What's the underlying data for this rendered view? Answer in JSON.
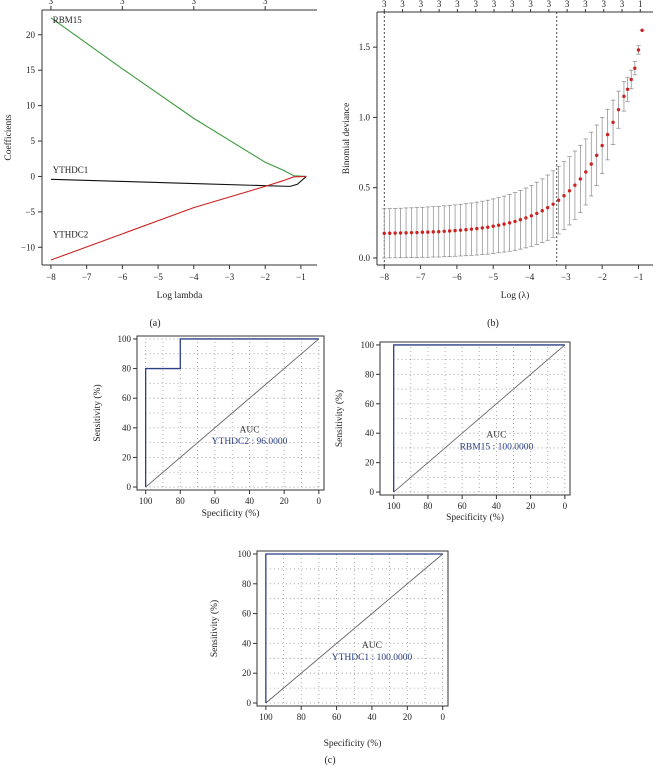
{
  "figure": {
    "panel_a_label": "(a)",
    "panel_b_label": "(b)",
    "panel_c_label": "(c)"
  },
  "colors": {
    "axis": "#333333",
    "green": "#3a9a3a",
    "red": "#cc2222",
    "black": "#111111",
    "roc_blue": "#2b3f86",
    "diag": "#666666",
    "grid": "#777777",
    "errbar": "#888888"
  },
  "chart_data": [
    {
      "id": "a",
      "type": "line",
      "title": "",
      "xlabel": "Log lambda",
      "ylabel": "Coefficients",
      "xlim": [
        -8.25,
        -0.55
      ],
      "ylim": [
        -12.5,
        23.5
      ],
      "xticks": [
        -8,
        -7,
        -6,
        -5,
        -4,
        -3,
        -2,
        -1
      ],
      "yticks": [
        -10,
        -5,
        0,
        5,
        10,
        15,
        20
      ],
      "top_ticks": {
        "x": [
          -8,
          -6,
          -4,
          -2
        ],
        "labels": [
          "3",
          "3",
          "3",
          "3"
        ]
      },
      "series": [
        {
          "name": "RBM15",
          "color": "green",
          "x": [
            -8,
            -6,
            -4,
            -2,
            -1.5,
            -1.2,
            -0.85
          ],
          "y": [
            22.4,
            15.2,
            8.2,
            2.0,
            0.9,
            0.1,
            0
          ]
        },
        {
          "name": "YTHDC1",
          "color": "black",
          "x": [
            -8,
            -6,
            -4,
            -2,
            -1.3,
            -1.1,
            -0.85
          ],
          "y": [
            -0.4,
            -0.7,
            -1.0,
            -1.3,
            -1.4,
            -1.1,
            0
          ]
        },
        {
          "name": "YTHDC2",
          "color": "red",
          "x": [
            -8,
            -6,
            -4,
            -2,
            -1.5,
            -1.2,
            -0.85
          ],
          "y": [
            -11.8,
            -8.1,
            -4.4,
            -1.4,
            -0.6,
            -0.05,
            0
          ]
        }
      ],
      "labels": [
        {
          "text": "RBM15",
          "x": -7.95,
          "y": 21.7
        },
        {
          "text": "YTHDC1",
          "x": -7.95,
          "y": 0.5
        },
        {
          "text": "YTHDC2",
          "x": -7.95,
          "y": -8.6
        }
      ]
    },
    {
      "id": "b",
      "type": "scatter",
      "title": "",
      "xlabel": "Log (λ)",
      "ylabel": "Binomial deviance",
      "xlim": [
        -8.2,
        -0.6
      ],
      "ylim": [
        -0.05,
        1.75
      ],
      "xticks": [
        -8,
        -7,
        -6,
        -5,
        -4,
        -3,
        -2,
        -1
      ],
      "yticks": [
        0.0,
        0.5,
        1.0,
        1.5
      ],
      "ytick_labels": [
        "0.0",
        "0.5",
        "1.0",
        "1.5"
      ],
      "top_labels": [
        "3",
        "3",
        "3",
        "3",
        "3",
        "3",
        "3",
        "3",
        "3",
        "3",
        "3",
        "3",
        "3",
        "3",
        "1"
      ],
      "vlines": [
        -8,
        -3.25
      ],
      "x": [
        -8.0,
        -7.85,
        -7.7,
        -7.55,
        -7.4,
        -7.25,
        -7.1,
        -6.95,
        -6.8,
        -6.65,
        -6.5,
        -6.35,
        -6.2,
        -6.05,
        -5.9,
        -5.75,
        -5.6,
        -5.45,
        -5.3,
        -5.15,
        -5.0,
        -4.85,
        -4.7,
        -4.55,
        -4.4,
        -4.25,
        -4.1,
        -3.95,
        -3.8,
        -3.65,
        -3.5,
        -3.35,
        -3.2,
        -3.05,
        -2.9,
        -2.75,
        -2.6,
        -2.45,
        -2.3,
        -2.15,
        -2.0,
        -1.85,
        -1.7,
        -1.55,
        -1.4,
        -1.3,
        -1.2,
        -1.1,
        -1.0,
        -0.9
      ],
      "mean": [
        0.175,
        0.176,
        0.177,
        0.178,
        0.179,
        0.18,
        0.181,
        0.183,
        0.184,
        0.186,
        0.187,
        0.19,
        0.192,
        0.195,
        0.198,
        0.201,
        0.205,
        0.209,
        0.214,
        0.219,
        0.226,
        0.233,
        0.241,
        0.25,
        0.26,
        0.272,
        0.285,
        0.3,
        0.317,
        0.336,
        0.358,
        0.383,
        0.411,
        0.443,
        0.478,
        0.518,
        0.562,
        0.612,
        0.668,
        0.73,
        0.8,
        0.878,
        0.965,
        1.055,
        1.15,
        1.2,
        1.27,
        1.35,
        1.48,
        1.62
      ],
      "err": [
        0.175,
        0.175,
        0.176,
        0.176,
        0.177,
        0.177,
        0.178,
        0.178,
        0.179,
        0.179,
        0.18,
        0.181,
        0.182,
        0.183,
        0.184,
        0.185,
        0.186,
        0.188,
        0.19,
        0.192,
        0.194,
        0.196,
        0.199,
        0.202,
        0.205,
        0.209,
        0.213,
        0.217,
        0.222,
        0.227,
        0.232,
        0.237,
        0.24,
        0.242,
        0.243,
        0.243,
        0.24,
        0.235,
        0.227,
        0.216,
        0.2,
        0.18,
        0.158,
        0.132,
        0.105,
        0.086,
        0.066,
        0.047,
        0.03,
        0.0
      ]
    },
    {
      "id": "c1",
      "type": "line",
      "xlabel": "Specificity (%)",
      "ylabel": "Sensitivity (%)",
      "xlim": [
        105,
        -3
      ],
      "ylim": [
        -2,
        102
      ],
      "xticks": [
        100,
        80,
        60,
        40,
        20,
        0
      ],
      "yticks": [
        0,
        20,
        40,
        60,
        80,
        100
      ],
      "auc_title": "AUC",
      "auc_label": "YTHDC2 : 96.0000",
      "roc_x": [
        100,
        100,
        80,
        80,
        0
      ],
      "roc_y": [
        0,
        80,
        80,
        100,
        100
      ]
    },
    {
      "id": "c2",
      "type": "line",
      "xlabel": "Specificity (%)",
      "ylabel": "Sensitivity (%)",
      "xlim": [
        108,
        -3
      ],
      "ylim": [
        -2,
        102
      ],
      "xticks": [
        100,
        80,
        60,
        40,
        20,
        0
      ],
      "yticks": [
        0,
        20,
        40,
        60,
        80,
        100
      ],
      "auc_title": "AUC",
      "auc_label": "RBM15 : 100.0000",
      "roc_x": [
        100,
        100,
        0
      ],
      "roc_y": [
        0,
        100,
        100
      ]
    },
    {
      "id": "c3",
      "type": "line",
      "xlabel": "Specificity (%)",
      "ylabel": "Sensitivity (%)",
      "xlim": [
        105,
        -3
      ],
      "ylim": [
        -2,
        102
      ],
      "xticks": [
        100,
        80,
        60,
        40,
        20,
        0
      ],
      "yticks": [
        0,
        20,
        40,
        60,
        80,
        100
      ],
      "auc_title": "AUC",
      "auc_label": "YTHDC1 : 100.0000",
      "roc_x": [
        100,
        100,
        0
      ],
      "roc_y": [
        0,
        100,
        100
      ]
    }
  ]
}
